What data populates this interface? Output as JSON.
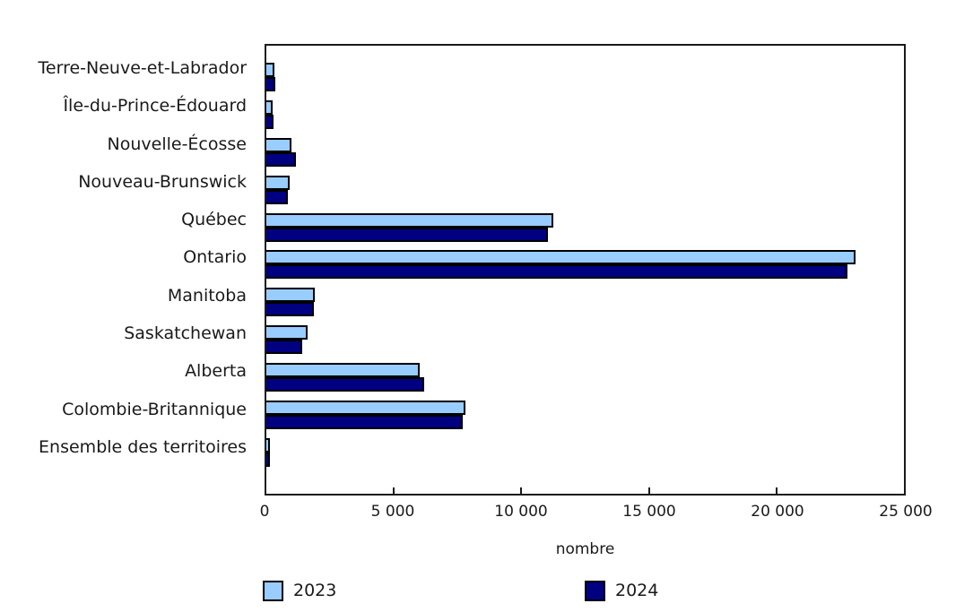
{
  "chart_data": {
    "type": "bar",
    "orientation": "horizontal",
    "title": "",
    "xlabel": "nombre",
    "ylabel": "",
    "xlim": [
      0,
      25000
    ],
    "x_ticks": [
      0,
      5000,
      10000,
      15000,
      20000,
      25000
    ],
    "x_tick_labels": [
      "0",
      "5 000",
      "10 000",
      "15 000",
      "20 000",
      "25 000"
    ],
    "grid": false,
    "legend_position": "bottom",
    "categories": [
      "Terre-Neuve-et-Labrador",
      "Île-du-Prince-Édouard",
      "Nouvelle-Écosse",
      "Nouveau-Brunswick",
      "Québec",
      "Ontario",
      "Manitoba",
      "Saskatchewan",
      "Alberta",
      "Colombie-Britannique",
      "Ensemble des territoires"
    ],
    "series": [
      {
        "name": "2023",
        "color": "#99CCFF",
        "values": [
          320,
          250,
          1000,
          900,
          11250,
          23100,
          1900,
          1600,
          6000,
          7800,
          60
        ]
      },
      {
        "name": "2024",
        "color": "#000080",
        "values": [
          350,
          280,
          1150,
          850,
          11050,
          22800,
          1850,
          1400,
          6200,
          7700,
          80
        ]
      }
    ]
  },
  "colors": {
    "axis": "#1a1a1a",
    "bar_outline": "#000000",
    "background": "#ffffff",
    "series_2023": "#99CCFF",
    "series_2024": "#000080"
  }
}
